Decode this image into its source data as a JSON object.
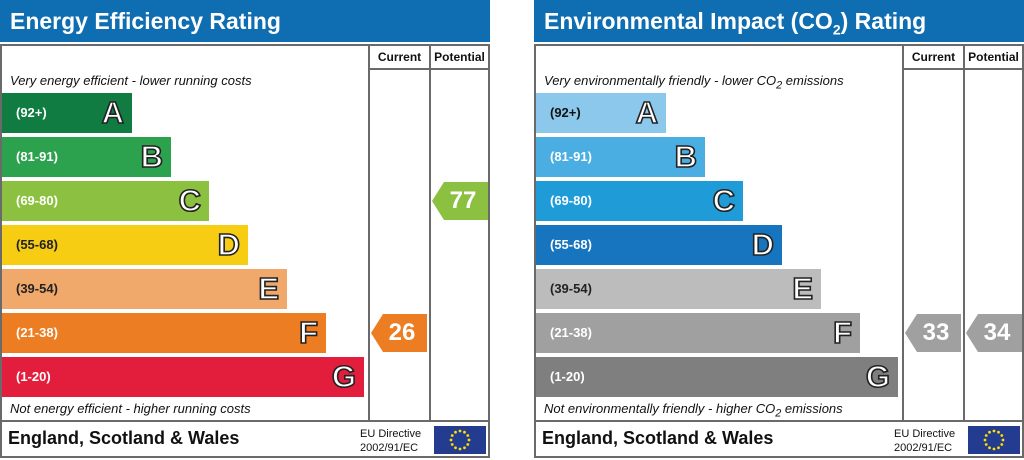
{
  "chart_data": [
    {
      "type": "bar",
      "title": "Energy Efficiency Rating",
      "columns": [
        "Current",
        "Potential"
      ],
      "top_note": "Very energy efficient - lower running costs",
      "bottom_note": "Not energy efficient - higher running costs",
      "bands": [
        {
          "letter": "A",
          "range": "(92+)",
          "color": "#107c41"
        },
        {
          "letter": "B",
          "range": "(81-91)",
          "color": "#2ca24f"
        },
        {
          "letter": "C",
          "range": "(69-80)",
          "color": "#8cc041"
        },
        {
          "letter": "D",
          "range": "(55-68)",
          "color": "#f7cd14"
        },
        {
          "letter": "E",
          "range": "(39-54)",
          "color": "#f1a96b"
        },
        {
          "letter": "F",
          "range": "(21-38)",
          "color": "#ec7d22"
        },
        {
          "letter": "G",
          "range": "(1-20)",
          "color": "#e31d3c"
        }
      ],
      "current": {
        "value": "26",
        "band": "F",
        "color": "#ec7d22"
      },
      "potential": {
        "value": "77",
        "band": "C",
        "color": "#8cc041"
      },
      "region": "England, Scotland & Wales",
      "directive": [
        "EU Directive",
        "2002/91/EC"
      ]
    },
    {
      "type": "bar",
      "title_parts": [
        "Environmental Impact (CO",
        "2",
        ") Rating"
      ],
      "columns": [
        "Current",
        "Potential"
      ],
      "top_note_parts": [
        "Very environmentally friendly - lower CO",
        "2",
        " emissions"
      ],
      "bottom_note_parts": [
        "Not environmentally friendly - higher CO",
        "2",
        " emissions"
      ],
      "bands": [
        {
          "letter": "A",
          "range": "(92+)",
          "color": "#8bc8ec"
        },
        {
          "letter": "B",
          "range": "(81-91)",
          "color": "#4aaee2"
        },
        {
          "letter": "C",
          "range": "(69-80)",
          "color": "#1f9bd7"
        },
        {
          "letter": "D",
          "range": "(55-68)",
          "color": "#1774be"
        },
        {
          "letter": "E",
          "range": "(39-54)",
          "color": "#bcbcbc"
        },
        {
          "letter": "F",
          "range": "(21-38)",
          "color": "#a0a0a0"
        },
        {
          "letter": "G",
          "range": "(1-20)",
          "color": "#7f7f7f"
        }
      ],
      "current": {
        "value": "33",
        "band": "F",
        "color": "#a0a0a0"
      },
      "potential": {
        "value": "34",
        "band": "F",
        "color": "#a0a0a0"
      },
      "region": "England, Scotland & Wales",
      "directive": [
        "EU Directive",
        "2002/91/EC"
      ]
    }
  ]
}
